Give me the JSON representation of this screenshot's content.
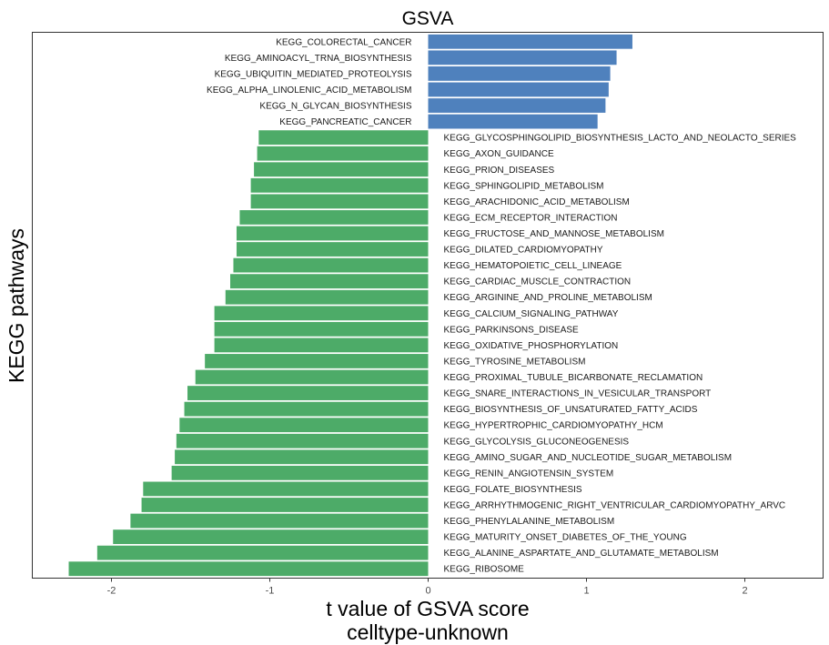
{
  "chart_data": {
    "type": "bar",
    "orientation": "horizontal",
    "title": "GSVA",
    "xlabel": [
      "t value of GSVA score",
      "celltype-unknown"
    ],
    "ylabel": "KEGG pathways",
    "xlim": [
      -2.5,
      2.5
    ],
    "xticks": [
      -2,
      -1,
      0,
      1,
      2
    ],
    "colors": {
      "positive": "#4f81bd",
      "negative": "#4dab68"
    },
    "categories": [
      "KEGG_COLORECTAL_CANCER",
      "KEGG_AMINOACYL_TRNA_BIOSYNTHESIS",
      "KEGG_UBIQUITIN_MEDIATED_PROTEOLYSIS",
      "KEGG_ALPHA_LINOLENIC_ACID_METABOLISM",
      "KEGG_N_GLYCAN_BIOSYNTHESIS",
      "KEGG_PANCREATIC_CANCER",
      "KEGG_GLYCOSPHINGOLIPID_BIOSYNTHESIS_LACTO_AND_NEOLACTO_SERIES",
      "KEGG_AXON_GUIDANCE",
      "KEGG_PRION_DISEASES",
      "KEGG_SPHINGOLIPID_METABOLISM",
      "KEGG_ARACHIDONIC_ACID_METABOLISM",
      "KEGG_ECM_RECEPTOR_INTERACTION",
      "KEGG_FRUCTOSE_AND_MANNOSE_METABOLISM",
      "KEGG_DILATED_CARDIOMYOPATHY",
      "KEGG_HEMATOPOIETIC_CELL_LINEAGE",
      "KEGG_CARDIAC_MUSCLE_CONTRACTION",
      "KEGG_ARGININE_AND_PROLINE_METABOLISM",
      "KEGG_CALCIUM_SIGNALING_PATHWAY",
      "KEGG_PARKINSONS_DISEASE",
      "KEGG_OXIDATIVE_PHOSPHORYLATION",
      "KEGG_TYROSINE_METABOLISM",
      "KEGG_PROXIMAL_TUBULE_BICARBONATE_RECLAMATION",
      "KEGG_SNARE_INTERACTIONS_IN_VESICULAR_TRANSPORT",
      "KEGG_BIOSYNTHESIS_OF_UNSATURATED_FATTY_ACIDS",
      "KEGG_HYPERTROPHIC_CARDIOMYOPATHY_HCM",
      "KEGG_GLYCOLYSIS_GLUCONEOGENESIS",
      "KEGG_AMINO_SUGAR_AND_NUCLEOTIDE_SUGAR_METABOLISM",
      "KEGG_RENIN_ANGIOTENSIN_SYSTEM",
      "KEGG_FOLATE_BIOSYNTHESIS",
      "KEGG_ARRHYTHMOGENIC_RIGHT_VENTRICULAR_CARDIOMYOPATHY_ARVC",
      "KEGG_PHENYLALANINE_METABOLISM",
      "KEGG_MATURITY_ONSET_DIABETES_OF_THE_YOUNG",
      "KEGG_ALANINE_ASPARTATE_AND_GLUTAMATE_METABOLISM",
      "KEGG_RIBOSOME"
    ],
    "values": [
      1.29,
      1.19,
      1.15,
      1.14,
      1.12,
      1.07,
      -1.07,
      -1.08,
      -1.1,
      -1.12,
      -1.12,
      -1.19,
      -1.21,
      -1.21,
      -1.23,
      -1.25,
      -1.28,
      -1.35,
      -1.35,
      -1.35,
      -1.41,
      -1.47,
      -1.52,
      -1.54,
      -1.57,
      -1.59,
      -1.6,
      -1.62,
      -1.8,
      -1.81,
      -1.88,
      -1.99,
      -2.09,
      -2.27
    ]
  }
}
